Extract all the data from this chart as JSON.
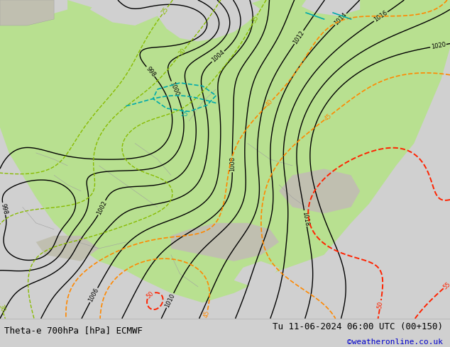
{
  "title_left": "Theta-e 700hPa [hPa] ECMWF",
  "title_right": "Tu 11-06-2024 06:00 UTC (00+150)",
  "credit": "©weatheronline.co.uk",
  "bg_color": "#d0d0d0",
  "land_color": "#b8e090",
  "land_color2": "#c8e8a0",
  "sea_color": "#d0d0d0",
  "mountain_color": "#c0bfb0",
  "isobar_color": "#000000",
  "theta_green_color": "#88bb00",
  "theta_orange_color": "#ff8800",
  "theta_red_color": "#ff2200",
  "theta_cyan_color": "#00aaaa",
  "figsize": [
    6.34,
    4.9
  ],
  "dpi": 100,
  "bottom_bar_height": 0.082,
  "bottom_bar_color": "#e0e0e0",
  "title_fontsize": 9,
  "credit_fontsize": 8,
  "credit_color": "#0000cc",
  "isobar_levels": [
    998,
    1000,
    1002,
    1004,
    1006,
    1008,
    1010,
    1012,
    1014,
    1016,
    1018,
    1020
  ],
  "theta_green_levels": [
    25,
    30,
    35
  ],
  "theta_orange_levels": [
    40,
    45
  ],
  "theta_red_levels": [
    50,
    55
  ]
}
